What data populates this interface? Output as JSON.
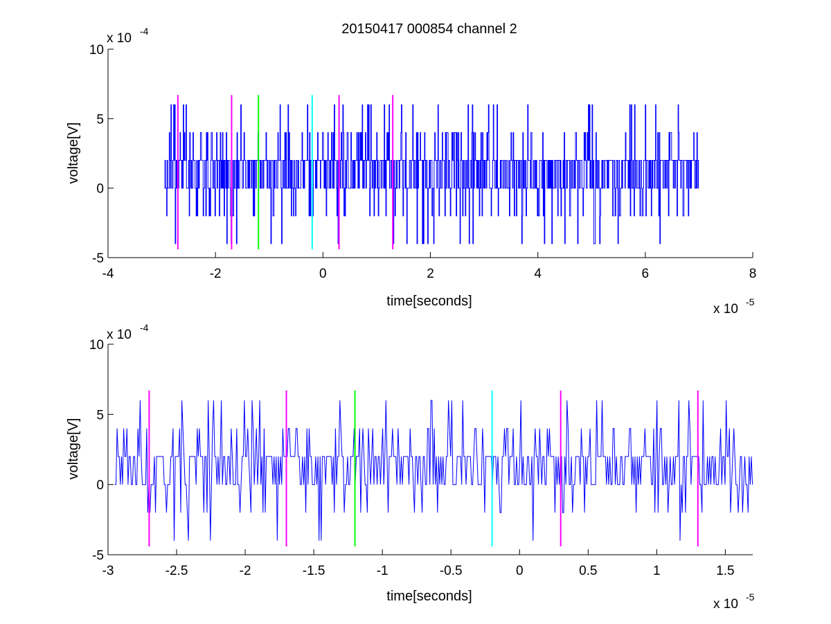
{
  "figure": {
    "title": "20150417 000854 channel 2"
  },
  "colors": {
    "signal": "#0000ff",
    "magenta": "#ff00ff",
    "green": "#00ff00",
    "cyan": "#00ffff",
    "axis": "#000000"
  },
  "chart_data": [
    {
      "type": "line",
      "title": "20150417 000854 channel 2",
      "xlabel": "time[seconds]",
      "ylabel": "voltage[V]",
      "x_multiplier": "x 10",
      "x_exponent": "-5",
      "y_multiplier": "x 10",
      "y_exponent": "-4",
      "xlim": [
        -4,
        8
      ],
      "ylim": [
        -5,
        10
      ],
      "xticks": [
        -4,
        -2,
        0,
        2,
        4,
        6,
        8
      ],
      "yticks": [
        -5,
        0,
        5,
        10
      ],
      "xtick_labels": [
        "-4",
        "-2",
        "0",
        "2",
        "4",
        "6",
        "8"
      ],
      "ytick_labels": [
        "-5",
        "0",
        "5",
        "10"
      ],
      "grid": false,
      "series": [
        {
          "x_range": [
            -2.95,
            7.0
          ],
          "y_range": [
            -4,
            6
          ],
          "y_baseline": 2,
          "description_levels": [
            -4,
            -2,
            0,
            2,
            4,
            6
          ]
        }
      ],
      "markers": [
        {
          "x": -2.7,
          "y_range": [
            -4.4,
            6.7
          ],
          "color": "magenta"
        },
        {
          "x": -1.7,
          "y_range": [
            -4.4,
            6.7
          ],
          "color": "magenta"
        },
        {
          "x": -1.2,
          "y_range": [
            -4.4,
            6.7
          ],
          "color": "green"
        },
        {
          "x": -0.2,
          "y_range": [
            -4.4,
            6.7
          ],
          "color": "cyan"
        },
        {
          "x": 0.3,
          "y_range": [
            -4.4,
            6.7
          ],
          "color": "magenta"
        },
        {
          "x": 1.3,
          "y_range": [
            -4.4,
            6.7
          ],
          "color": "magenta"
        }
      ]
    },
    {
      "type": "line",
      "title": "",
      "xlabel": "time[seconds]",
      "ylabel": "voltage[V]",
      "x_multiplier": "x 10",
      "x_exponent": "-5",
      "y_multiplier": "x 10",
      "y_exponent": "-4",
      "xlim": [
        -3.0,
        1.7
      ],
      "ylim": [
        -5,
        10
      ],
      "xticks": [
        -3,
        -2.5,
        -2,
        -1.5,
        -1,
        -0.5,
        0,
        0.5,
        1,
        1.5
      ],
      "yticks": [
        -5,
        0,
        5,
        10
      ],
      "xtick_labels": [
        "-3",
        "-2.5",
        "-2",
        "-1.5",
        "-1",
        "-0.5",
        "0",
        "0.5",
        "1",
        "1.5"
      ],
      "ytick_labels": [
        "-5",
        "0",
        "5",
        "10"
      ],
      "grid": false,
      "series": [
        {
          "x_range": [
            -2.95,
            1.7
          ],
          "y_range": [
            -4,
            6
          ],
          "y_baseline": 2
        }
      ],
      "markers": [
        {
          "x": -2.7,
          "y_range": [
            -4.4,
            6.7
          ],
          "color": "magenta"
        },
        {
          "x": -1.7,
          "y_range": [
            -4.4,
            6.7
          ],
          "color": "magenta"
        },
        {
          "x": -1.2,
          "y_range": [
            -4.4,
            6.7
          ],
          "color": "green"
        },
        {
          "x": -0.2,
          "y_range": [
            -4.4,
            6.7
          ],
          "color": "cyan"
        },
        {
          "x": 0.3,
          "y_range": [
            -4.4,
            6.7
          ],
          "color": "magenta"
        },
        {
          "x": 1.3,
          "y_range": [
            -4.4,
            6.7
          ],
          "color": "magenta"
        }
      ]
    }
  ]
}
